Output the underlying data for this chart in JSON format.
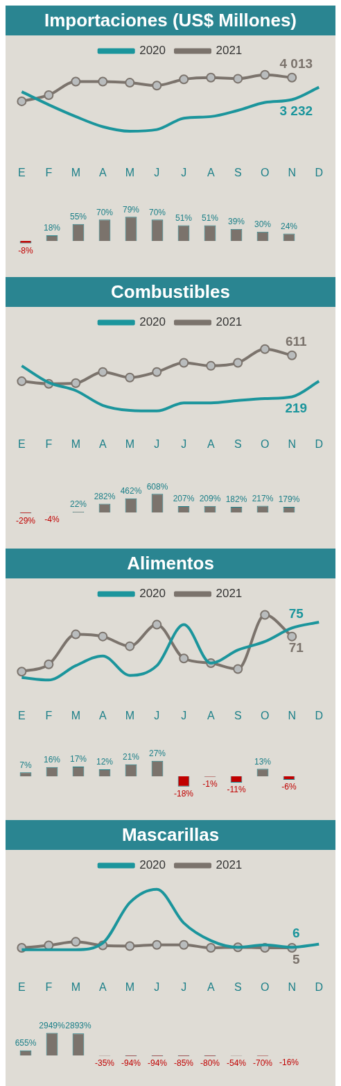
{
  "chart_data": [
    {
      "type": "line",
      "title": "Importaciones (US$ Millones)",
      "legend": "top",
      "grid": false,
      "tick_labels": "x",
      "categories": [
        "E",
        "F",
        "M",
        "A",
        "M",
        "J",
        "J",
        "A",
        "S",
        "O",
        "N",
        "D"
      ],
      "series": [
        {
          "name": "2020",
          "color": "#1b959c",
          "marker": "none",
          "values": [
            3512,
            3051,
            2631,
            2270,
            2110,
            2170,
            2571,
            2631,
            2851,
            3132,
            3232,
            3672
          ],
          "value_labels": [
            null,
            null,
            null,
            null,
            null,
            null,
            null,
            null,
            null,
            null,
            "3 232",
            null
          ]
        },
        {
          "name": "2021",
          "color": "#7b736c",
          "marker": "circle",
          "values": [
            3172,
            3392,
            3873,
            3873,
            3833,
            3732,
            3953,
            4013,
            3973,
            4113,
            4013,
            null
          ],
          "value_labels": [
            null,
            null,
            null,
            null,
            null,
            null,
            null,
            null,
            null,
            null,
            "4 013",
            null
          ]
        }
      ]
    },
    {
      "type": "bar",
      "tick_labels": false,
      "grid": false,
      "categories": [
        null,
        null,
        null,
        null,
        null,
        null,
        null,
        null,
        null,
        null,
        null,
        null
      ],
      "values": [
        -8,
        18,
        55,
        70,
        79,
        70,
        51,
        51,
        39,
        30,
        24,
        null
      ],
      "value_labels": [
        "-8%",
        "18%",
        "55%",
        "70%",
        "79%",
        "70%",
        "51%",
        "51%",
        "39%",
        "30%",
        "24%",
        null
      ],
      "colors": [
        "#c00000",
        "#7b736c",
        "#7b736c",
        "#7b736c",
        "#7b736c",
        "#7b736c",
        "#7b736c",
        "#7b736c",
        "#7b736c",
        "#7b736c",
        "#7b736c",
        "#7b736c"
      ]
    },
    {
      "type": "line",
      "title": "Combustibles",
      "legend": "top",
      "grid": false,
      "tick_labels": "x",
      "categories": [
        "E",
        "F",
        "M",
        "A",
        "M",
        "J",
        "J",
        "A",
        "S",
        "O",
        "N",
        "D"
      ],
      "series": [
        {
          "name": "2020",
          "color": "#1b959c",
          "marker": "none",
          "values": [
            512,
            354,
            278,
            138,
            91,
            85,
            161,
            161,
            184,
            202,
            219,
            366
          ],
          "value_labels": [
            null,
            null,
            null,
            null,
            null,
            null,
            null,
            null,
            null,
            null,
            "219",
            null
          ]
        },
        {
          "name": "2021",
          "color": "#7b736c",
          "marker": "circle",
          "values": [
            366,
            342,
            348,
            454,
            401,
            454,
            541,
            512,
            541,
            670,
            611,
            null
          ],
          "value_labels": [
            null,
            null,
            null,
            null,
            null,
            null,
            null,
            null,
            null,
            null,
            "611",
            null
          ]
        }
      ]
    },
    {
      "type": "bar",
      "tick_labels": false,
      "grid": false,
      "categories": [
        null,
        null,
        null,
        null,
        null,
        null,
        null,
        null,
        null,
        null,
        null,
        null
      ],
      "values": [
        -29,
        -4,
        22,
        282,
        462,
        608,
        207,
        209,
        182,
        217,
        179,
        null
      ],
      "value_labels": [
        "-29%",
        "-4%",
        "22%",
        "282%",
        "462%",
        "608%",
        "207%",
        "209%",
        "182%",
        "217%",
        "179%",
        null
      ],
      "colors": [
        "#c00000",
        "#c00000",
        "#7b736c",
        "#7b736c",
        "#7b736c",
        "#7b736c",
        "#7b736c",
        "#7b736c",
        "#7b736c",
        "#7b736c",
        "#7b736c",
        "#7b736c"
      ]
    },
    {
      "type": "line",
      "title": "Alimentos",
      "legend": "top",
      "grid": false,
      "tick_labels": "x",
      "categories": [
        "E",
        "F",
        "M",
        "A",
        "M",
        "J",
        "J",
        "A",
        "S",
        "O",
        "N",
        "D"
      ],
      "series": [
        {
          "name": "2020",
          "color": "#1b959c",
          "marker": "none",
          "values": [
            51.6,
            50.4,
            57.2,
            61.8,
            52.6,
            57.2,
            76.6,
            58.4,
            64.6,
            68.6,
            75,
            77.8
          ],
          "value_labels": [
            null,
            null,
            null,
            null,
            null,
            null,
            null,
            null,
            null,
            null,
            "75",
            null
          ]
        },
        {
          "name": "2021",
          "color": "#7b736c",
          "marker": "circle",
          "values": [
            54.4,
            57.8,
            72,
            71,
            66.4,
            76.6,
            60.6,
            58.4,
            55.6,
            81.2,
            71,
            null
          ],
          "value_labels": [
            null,
            null,
            null,
            null,
            null,
            null,
            null,
            null,
            null,
            null,
            "71",
            null
          ]
        }
      ]
    },
    {
      "type": "bar",
      "tick_labels": false,
      "grid": false,
      "categories": [
        null,
        null,
        null,
        null,
        null,
        null,
        null,
        null,
        null,
        null,
        null,
        null
      ],
      "values": [
        7,
        16,
        17,
        12,
        21,
        27,
        -18,
        -1,
        -11,
        13,
        -6,
        null
      ],
      "value_labels": [
        "7%",
        "16%",
        "17%",
        "12%",
        "21%",
        "27%",
        "-18%",
        "-1%",
        "-11%",
        "13%",
        "-6%",
        null
      ],
      "colors": [
        "#7b736c",
        "#7b736c",
        "#7b736c",
        "#7b736c",
        "#7b736c",
        "#7b736c",
        "#c00000",
        "#c00000",
        "#c00000",
        "#7b736c",
        "#c00000",
        "#7b736c"
      ]
    },
    {
      "type": "line",
      "title": "Mascarillas",
      "legend": "top",
      "grid": false,
      "tick_labels": "x",
      "categories": [
        "E",
        "F",
        "M",
        "A",
        "M",
        "J",
        "J",
        "A",
        "S",
        "O",
        "N",
        "D"
      ],
      "series": [
        {
          "name": "2020",
          "color": "#1b959c",
          "marker": "none",
          "values": [
            2,
            2,
            2,
            13,
            80,
            102,
            46,
            17,
            6,
            10,
            6,
            11
          ],
          "value_labels": [
            null,
            null,
            null,
            null,
            null,
            null,
            null,
            null,
            null,
            null,
            "6",
            null
          ]
        },
        {
          "name": "2021",
          "color": "#7b736c",
          "marker": "circle",
          "values": [
            5,
            9,
            15,
            9,
            8,
            10,
            10,
            5,
            6,
            5,
            5,
            null
          ],
          "value_labels": [
            null,
            null,
            null,
            null,
            null,
            null,
            null,
            null,
            null,
            null,
            "5",
            null
          ]
        }
      ]
    },
    {
      "type": "bar",
      "tick_labels": false,
      "grid": false,
      "categories": [
        null,
        null,
        null,
        null,
        null,
        null,
        null,
        null,
        null,
        null,
        null,
        null
      ],
      "values": [
        655,
        2949,
        2893,
        -35,
        -94,
        -94,
        -85,
        -80,
        -54,
        -70,
        -16,
        null
      ],
      "value_labels": [
        "655%",
        "2949%",
        "2893%",
        "-35%",
        "-94%",
        "-94%",
        "-85%",
        "-80%",
        "-54%",
        "-70%",
        "-16%",
        null
      ],
      "colors": [
        "#7b736c",
        "#7b736c",
        "#7b736c",
        "#c00000",
        "#c00000",
        "#c00000",
        "#c00000",
        "#c00000",
        "#c00000",
        "#c00000",
        "#c00000",
        "#7b736c"
      ]
    }
  ]
}
